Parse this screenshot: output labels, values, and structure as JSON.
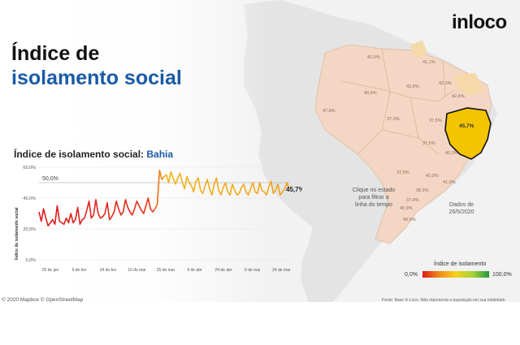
{
  "header": {
    "title_line1": "Índice de",
    "title_line2": "isolamento social",
    "logo": "inloco"
  },
  "chart_title": {
    "prefix": "Índice de isolamento social: ",
    "region": "Bahia"
  },
  "map": {
    "state_labels": [
      "42,6%",
      "41,1%",
      "43,9%",
      "42,3%",
      "47,8%",
      "37,3%",
      "37,5%",
      "45,7%",
      "37,5%",
      "37,5%",
      "40,3%",
      "42,0%",
      "41,0%",
      "38,3%",
      "37,4%",
      "40,9%",
      "42,4%",
      "40,9%",
      "40,5%"
    ],
    "click_hint": "Clique no estado\npara filtrar a\nlinha do tempo",
    "data_date": "Dados de\n26/5/2020",
    "legend_title": "Índice de isolamento",
    "legend_min": "0,0%",
    "legend_max": "100,0%",
    "credits": "© 2020 Mapbox © OpenStreetMap",
    "source": "Fonte: Base In Loco. Não representa a população em sua totalidade."
  },
  "colors": {
    "highlight_state": "#f5c400",
    "map_land": "#f3d7c4",
    "low": "#e01a1a",
    "high": "#f5b21a"
  },
  "chart_data": {
    "type": "line",
    "title": "Índice de isolamento social: Bahia",
    "xlabel": "",
    "ylabel": "Índice de isolamento social",
    "ylim": [
      0,
      60
    ],
    "y_ticks": [
      "0,0%",
      "20,0%",
      "40,0%",
      "60,0%"
    ],
    "x_ticks": [
      "25 de jan",
      "9 de fev",
      "24 de fev",
      "10 de mar",
      "25 de mar",
      "9 de abr",
      "24 de abr",
      "9 de mai",
      "24 de mai"
    ],
    "reference_line": {
      "value": 50,
      "label": "50,0%"
    },
    "last_value_label": "45,7%",
    "series": [
      {
        "name": "Bahia",
        "start": "25 de jan",
        "values": [
          31,
          25,
          33,
          27,
          22,
          24,
          26,
          23,
          35,
          25,
          24,
          23,
          27,
          24,
          30,
          24,
          26,
          34,
          23,
          26,
          27,
          32,
          38,
          27,
          29,
          39,
          30,
          27,
          28,
          30,
          37,
          26,
          28,
          31,
          38,
          33,
          29,
          31,
          39,
          34,
          31,
          29,
          33,
          38,
          35,
          32,
          30,
          35,
          40,
          33,
          31,
          33,
          36,
          58,
          52,
          54,
          55,
          50,
          57,
          53,
          49,
          53,
          56,
          50,
          46,
          54,
          50,
          48,
          44,
          51,
          53,
          45,
          43,
          48,
          52,
          46,
          42,
          49,
          53,
          45,
          42,
          47,
          50,
          44,
          42,
          49,
          45,
          42,
          43,
          47,
          49,
          44,
          42,
          46,
          50,
          44,
          43,
          50,
          45,
          44,
          42,
          47,
          51,
          43,
          45,
          49,
          42,
          44,
          46,
          50,
          45.7
        ]
      }
    ]
  }
}
